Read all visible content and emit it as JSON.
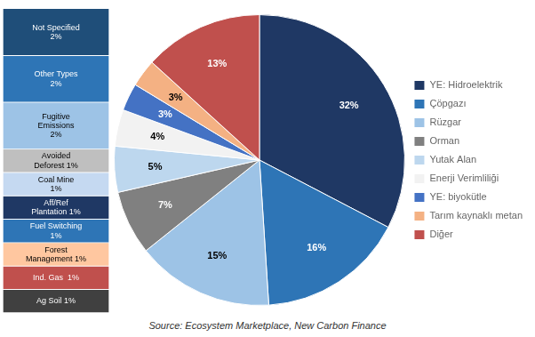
{
  "chart_data": [
    {
      "type": "pie",
      "categories": [
        "YE: Hidroelektrik",
        "Çöpgazı",
        "Rüzgar",
        "Orman",
        "Yutak Alan",
        "Enerji Verimliliği",
        "YE: biyokütle",
        "Tarım kaynaklı metan",
        "Diğer"
      ],
      "values": [
        32,
        16,
        15,
        7,
        5,
        4,
        3,
        3,
        13
      ],
      "value_labels": [
        "32%",
        "16%",
        "15%",
        "7%",
        "5%",
        "4%",
        "3%",
        "3%",
        "13%"
      ],
      "colors": [
        "#1F3864",
        "#2E75B6",
        "#9DC3E6",
        "#808080",
        "#BDD7EE",
        "#F2F2F2",
        "#4472C4",
        "#F4B183",
        "#C0504D"
      ],
      "data_labels": true,
      "legend": "right",
      "annotations": [
        "Source: Ecosystem Marketplace, New Carbon Finance"
      ]
    },
    {
      "type": "bar",
      "stacked": true,
      "categories": [
        null
      ],
      "series": [
        {
          "color": "#1F4E79",
          "values": [
            2
          ],
          "value_labels": [
            "Not Specified\n2%"
          ]
        },
        {
          "color": "#2E75B6",
          "values": [
            2
          ],
          "value_labels": [
            "Other Types\n2%"
          ]
        },
        {
          "color": "#9DC3E6",
          "values": [
            2
          ],
          "value_labels": [
            "Fugitive\nEmissions\n2%"
          ]
        },
        {
          "color": "#BFBFBF",
          "values": [
            1
          ],
          "value_labels": [
            "Avoided\nDeforest 1%"
          ]
        },
        {
          "color": "#C5D9F1",
          "values": [
            1
          ],
          "value_labels": [
            "Coal Mine\n1%"
          ]
        },
        {
          "color": "#1F3864",
          "values": [
            1
          ],
          "value_labels": [
            "Aff/Ref\nPlantation 1%"
          ]
        },
        {
          "color": "#2E75B6",
          "values": [
            1
          ],
          "value_labels": [
            "Fuel Switching\n1%"
          ]
        },
        {
          "color": "#FFC7A0",
          "values": [
            1
          ],
          "value_labels": [
            "Forest\nManagement 1%"
          ]
        },
        {
          "color": "#C0504D",
          "values": [
            1
          ],
          "value_labels": [
            "Ind. Gas  1%"
          ]
        },
        {
          "color": "#404040",
          "values": [
            1
          ],
          "value_labels": [
            "Ag Soil 1%"
          ]
        }
      ],
      "ylim": [
        0,
        13
      ],
      "data_labels": true,
      "grid": false,
      "tick_labels": false
    }
  ]
}
